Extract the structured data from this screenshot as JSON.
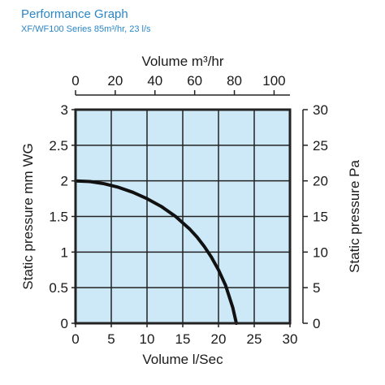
{
  "header": {
    "title": "Performance Graph",
    "subtitle": "XF/WF100 Series 85m³/hr, 23 l/s"
  },
  "colors": {
    "title": "#2a86c6",
    "plot_background": "#cde9f7",
    "grid": "#222222",
    "curve": "#111111",
    "text": "#1a1a1a"
  },
  "chart_data": {
    "type": "line",
    "title": "Performance Graph",
    "subtitle": "XF/WF100 Series 85m³/hr, 23 l/s",
    "xlabel": "Volume l/Sec",
    "ylabel": "Static pressure mm WG",
    "x2label": "Volume m³/hr",
    "y2label": "Static pressure Pa",
    "xlim": [
      0,
      30
    ],
    "ylim": [
      0,
      3
    ],
    "x2lim": [
      0,
      108
    ],
    "y2lim": [
      0,
      30
    ],
    "x_ticks": [
      0,
      5,
      10,
      15,
      20,
      25,
      30
    ],
    "y_ticks": [
      0,
      0.5,
      1,
      1.5,
      2,
      2.5,
      3
    ],
    "x2_ticks": [
      0,
      20,
      40,
      60,
      80,
      100
    ],
    "y2_ticks": [
      0,
      5,
      10,
      15,
      20,
      25,
      30
    ],
    "grid": true,
    "series": [
      {
        "x": [
          0,
          2,
          4,
          6,
          8,
          10,
          12,
          14,
          16,
          17,
          18,
          19,
          20,
          21,
          22,
          22.5
        ],
        "y": [
          2.0,
          1.99,
          1.96,
          1.91,
          1.84,
          1.75,
          1.64,
          1.5,
          1.32,
          1.21,
          1.08,
          0.93,
          0.75,
          0.53,
          0.22,
          0.0
        ]
      }
    ]
  }
}
